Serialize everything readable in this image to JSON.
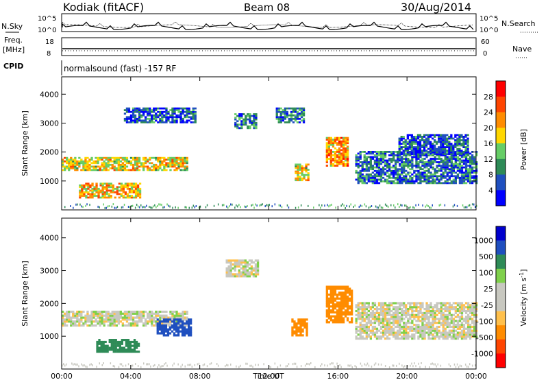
{
  "header": {
    "station": "Kodiak (fitACF)",
    "beam": "Beam 08",
    "date": "30/Aug/2014"
  },
  "side_labels": {
    "nsky": "N.Sky",
    "nsearch": "N.Search",
    "freq": "Freq.",
    "freq_unit": "[MHz]",
    "nave": "Nave",
    "cpid": "CPID",
    "cpid_value": "normalsound (fast) -157 RF"
  },
  "strip_ticks": {
    "noise_top": "10^5",
    "noise_bottom": "10^0",
    "freq_top": "18",
    "freq_bottom": "8",
    "nave_top": "60",
    "nave_bottom": "0"
  },
  "colors": {
    "power_scale": [
      "#0000ff",
      "#1f4fbf",
      "#2e8b57",
      "#66cd66",
      "#ffd700",
      "#ff8c00",
      "#ff4500",
      "#ff0000"
    ],
    "velocity_scale": [
      "#ff0000",
      "#ff4500",
      "#ff8c00",
      "#ffc04c",
      "#c8c8c0",
      "#c8c8c0",
      "#7fd04b",
      "#2e8b57",
      "#1f4fbf",
      "#0000cd"
    ]
  },
  "chart_data": [
    {
      "type": "heatmap",
      "name": "power",
      "ylabel": "Slant Range [km]",
      "yticks": [
        "1000",
        "2000",
        "3000",
        "4000"
      ],
      "ylim": [
        0,
        4600
      ],
      "xlim": [
        "00:00",
        "24:00"
      ],
      "colorbar_label": "Power [dB]",
      "colorbar_ticks": [
        "4",
        "8",
        "12",
        "16",
        "20",
        "24",
        "28"
      ],
      "colorbar_range": [
        0,
        32
      ],
      "regions": [
        {
          "t0": 0.0,
          "t1": 7.3,
          "r0": 1350,
          "r1": 1800,
          "value": 18
        },
        {
          "t0": 1.0,
          "t1": 4.5,
          "r0": 400,
          "r1": 900,
          "value": 20
        },
        {
          "t0": 3.6,
          "t1": 7.8,
          "r0": 3000,
          "r1": 3500,
          "value": 6
        },
        {
          "t0": 10.0,
          "t1": 11.2,
          "r0": 2800,
          "r1": 3300,
          "value": 8
        },
        {
          "t0": 12.4,
          "t1": 14.0,
          "r0": 3000,
          "r1": 3500,
          "value": 8
        },
        {
          "t0": 13.5,
          "t1": 14.3,
          "r0": 1000,
          "r1": 1600,
          "value": 18
        },
        {
          "t0": 15.3,
          "t1": 16.6,
          "r0": 1500,
          "r1": 2500,
          "value": 22
        },
        {
          "t0": 17.0,
          "t1": 24.0,
          "r0": 900,
          "r1": 2000,
          "value": 8
        },
        {
          "t0": 19.5,
          "t1": 23.5,
          "r0": 1900,
          "r1": 2600,
          "value": 6
        }
      ]
    },
    {
      "type": "heatmap",
      "name": "velocity",
      "ylabel": "Slant Range [km]",
      "xlabel": "Time UT",
      "xticks": [
        "00:00",
        "04:00",
        "08:00",
        "12:00",
        "16:00",
        "20:00",
        "00:00"
      ],
      "yticks": [
        "1000",
        "2000",
        "3000",
        "4000"
      ],
      "ylim": [
        0,
        4600
      ],
      "colorbar_label": "Velocity [m s^-1]",
      "colorbar_ticks": [
        "1000",
        "500",
        "100",
        "25",
        "-25",
        "-100",
        "-500",
        "-1000"
      ],
      "regions": [
        {
          "t0": 0.0,
          "t1": 7.3,
          "r0": 1300,
          "r1": 1750,
          "value": 0
        },
        {
          "t0": 2.0,
          "t1": 4.5,
          "r0": 500,
          "r1": 900,
          "value": 150
        },
        {
          "t0": 5.5,
          "t1": 7.5,
          "r0": 1000,
          "r1": 1500,
          "value": 600
        },
        {
          "t0": 9.5,
          "t1": 11.3,
          "r0": 2800,
          "r1": 3300,
          "value": 0
        },
        {
          "t0": 13.3,
          "t1": 14.2,
          "r0": 1000,
          "r1": 1500,
          "value": -300
        },
        {
          "t0": 15.3,
          "t1": 16.8,
          "r0": 1400,
          "r1": 2500,
          "value": -300
        },
        {
          "t0": 17.0,
          "t1": 24.0,
          "r0": 900,
          "r1": 2000,
          "value": 0
        }
      ]
    }
  ]
}
